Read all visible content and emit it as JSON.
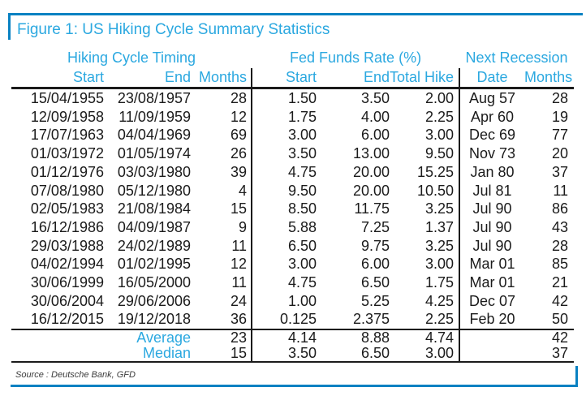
{
  "figure": {
    "title": "Figure 1: US Hiking Cycle Summary Statistics",
    "source": "Source : Deutsche Bank, GFD"
  },
  "colors": {
    "accent_cyan": "#2BA8E0",
    "frame_blue": "#0881C2",
    "ink": "#1b1b1b"
  },
  "table": {
    "group_headers": [
      {
        "label": "Hiking Cycle Timing",
        "span": 3
      },
      {
        "label": "Fed Funds Rate (%)",
        "span": 3
      },
      {
        "label": "Next Recession",
        "span": 2
      }
    ],
    "column_headers": [
      "Start",
      "End",
      "Months",
      "Start",
      "End",
      "Total Hike",
      "Date",
      "Months"
    ],
    "rows": [
      [
        "15/04/1955",
        "23/08/1957",
        "28",
        "1.50",
        "3.50",
        "2.00",
        "Aug 57",
        "28"
      ],
      [
        "12/09/1958",
        "11/09/1959",
        "12",
        "1.75",
        "4.00",
        "2.25",
        "Apr 60",
        "19"
      ],
      [
        "17/07/1963",
        "04/04/1969",
        "69",
        "3.00",
        "6.00",
        "3.00",
        "Dec 69",
        "77"
      ],
      [
        "01/03/1972",
        "01/05/1974",
        "26",
        "3.50",
        "13.00",
        "9.50",
        "Nov 73",
        "20"
      ],
      [
        "01/12/1976",
        "03/03/1980",
        "39",
        "4.75",
        "20.00",
        "15.25",
        "Jan 80",
        "37"
      ],
      [
        "07/08/1980",
        "05/12/1980",
        "4",
        "9.50",
        "20.00",
        "10.50",
        "Jul 81",
        "11"
      ],
      [
        "02/05/1983",
        "21/08/1984",
        "15",
        "8.50",
        "11.75",
        "3.25",
        "Jul 90",
        "86"
      ],
      [
        "16/12/1986",
        "04/09/1987",
        "9",
        "5.88",
        "7.25",
        "1.37",
        "Jul 90",
        "43"
      ],
      [
        "29/03/1988",
        "24/02/1989",
        "11",
        "6.50",
        "9.75",
        "3.25",
        "Jul 90",
        "28"
      ],
      [
        "04/02/1994",
        "01/02/1995",
        "12",
        "3.00",
        "6.00",
        "3.00",
        "Mar 01",
        "85"
      ],
      [
        "30/06/1999",
        "16/05/2000",
        "11",
        "4.75",
        "6.50",
        "1.75",
        "Mar 01",
        "21"
      ],
      [
        "30/06/2004",
        "29/06/2006",
        "24",
        "1.00",
        "5.25",
        "4.25",
        "Dec 07",
        "42"
      ],
      [
        "16/12/2015",
        "19/12/2018",
        "36",
        "0.125",
        "2.375",
        "2.25",
        "Feb 20",
        "50"
      ]
    ],
    "summary_rows": [
      {
        "label": "Average",
        "values": [
          "23",
          "4.14",
          "8.88",
          "4.74",
          "",
          "42"
        ]
      },
      {
        "label": "Median",
        "values": [
          "15",
          "3.50",
          "6.50",
          "3.00",
          "",
          "37"
        ]
      }
    ]
  }
}
